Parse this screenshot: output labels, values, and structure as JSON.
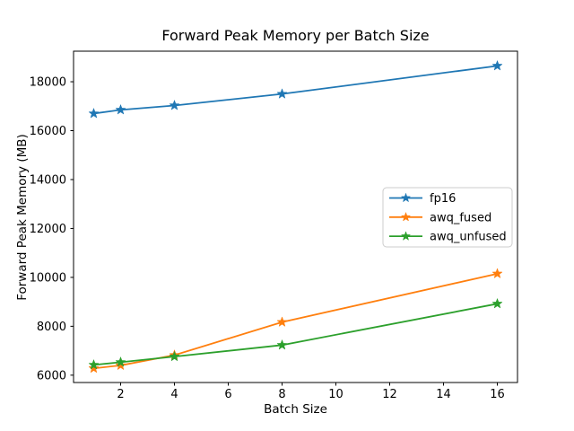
{
  "figure": {
    "title": "Forward Peak Memory per Batch Size",
    "xlabel": "Batch Size",
    "ylabel": "Forward Peak Memory (MB)",
    "background": "#ffffff",
    "text_color": "#000000",
    "spine_color": "#000000"
  },
  "chart_data": {
    "type": "line",
    "title": "Forward Peak Memory per Batch Size",
    "xlabel": "Batch Size",
    "ylabel": "Forward Peak Memory (MB)",
    "x": [
      1,
      2,
      4,
      8,
      16
    ],
    "series": [
      {
        "name": "fp16",
        "color": "#1f77b4",
        "marker": "star",
        "values": [
          16700,
          16850,
          17030,
          17500,
          18650
        ]
      },
      {
        "name": "awq_fused",
        "color": "#ff7f0e",
        "marker": "star",
        "values": [
          6280,
          6400,
          6820,
          8170,
          10150
        ]
      },
      {
        "name": "awq_unfused",
        "color": "#2ca02c",
        "marker": "star",
        "values": [
          6420,
          6530,
          6760,
          7230,
          8920
        ]
      }
    ],
    "xlim": [
      0.25,
      16.75
    ],
    "ylim": [
      5700,
      19250
    ],
    "xticks": [
      2,
      4,
      6,
      8,
      10,
      12,
      14,
      16
    ],
    "yticks": [
      6000,
      8000,
      10000,
      12000,
      14000,
      16000,
      18000
    ],
    "grid": false,
    "legend": {
      "position": "center-right",
      "entries": [
        "fp16",
        "awq_fused",
        "awq_unfused"
      ],
      "border_color": "#cccccc",
      "fill_color": "#ffffff"
    }
  }
}
